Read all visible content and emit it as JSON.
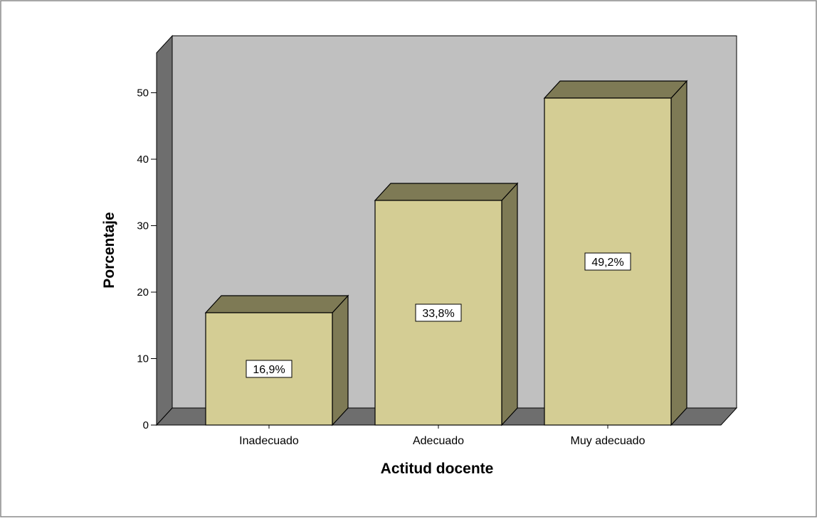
{
  "chart_data": {
    "type": "bar",
    "categories": [
      "Inadecuado",
      "Adecuado",
      "Muy adecuado"
    ],
    "values": [
      16.9,
      33.8,
      49.2
    ],
    "data_labels": [
      "16,9%",
      "33,8%",
      "49,2%"
    ],
    "xlabel": "Actitud docente",
    "ylabel": "Porcentaje",
    "ylim": [
      0,
      50
    ],
    "yticks": [
      0,
      10,
      20,
      30,
      40,
      50
    ],
    "grid": false,
    "style": "3d",
    "colors": {
      "bar_front": "#d4cd94",
      "bar_side": "#7e7a55",
      "bar_top": "#7e7a55",
      "back_wall": "#c0c0c0",
      "side_wall": "#6e6e6e",
      "floor": "#6e6e6e",
      "frame": "#606060",
      "label_box": "#ffffff"
    }
  }
}
